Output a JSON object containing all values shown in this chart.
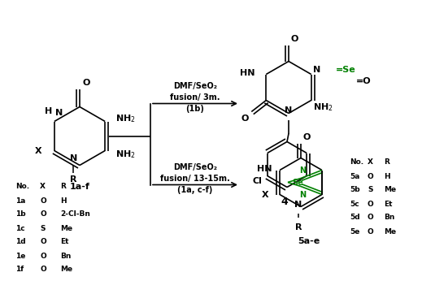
{
  "background": "#ffffff",
  "black": "#000000",
  "green": "#008000",
  "table1_headers": [
    "No.",
    "X",
    "R"
  ],
  "table1_rows": [
    [
      "1a",
      "O",
      "H"
    ],
    [
      "1b",
      "O",
      "2-Cl-Bn"
    ],
    [
      "1c",
      "S",
      "Me"
    ],
    [
      "1d",
      "O",
      "Et"
    ],
    [
      "1e",
      "O",
      "Bn"
    ],
    [
      "1f",
      "O",
      "Me"
    ]
  ],
  "table2_headers": [
    "No.",
    "X",
    "R"
  ],
  "table2_rows": [
    [
      "5a",
      "O",
      "H"
    ],
    [
      "5b",
      "S",
      "Me"
    ],
    [
      "5c",
      "O",
      "Et"
    ],
    [
      "5d",
      "O",
      "Bn"
    ],
    [
      "5e",
      "O",
      "Me"
    ]
  ],
  "arrow1_line1": "DMF/SeO₂",
  "arrow1_line2": "fusion/ 3m.",
  "arrow1_line3": "(1b)",
  "arrow2_line1": "DMF/SeO₂",
  "arrow2_line2": "fusion/ 13-15m.",
  "arrow2_line3": "(1a, c-f)",
  "label_1af": "1a-f",
  "label_4": "4",
  "label_5ae": "5a-e"
}
